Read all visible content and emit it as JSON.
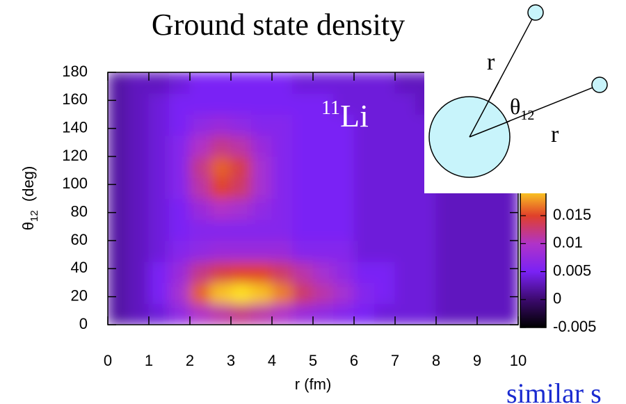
{
  "chart_data": {
    "type": "heatmap",
    "title": "Ground state density",
    "annotation": {
      "superscript": "11",
      "text": "Li"
    },
    "xlabel": "r  (fm)",
    "ylabel": {
      "symbol": "θ",
      "subscript": "12",
      "unit": "(deg)"
    },
    "xlim": [
      0,
      10
    ],
    "ylim": [
      0,
      180
    ],
    "xticks": [
      0,
      1,
      2,
      3,
      4,
      5,
      6,
      7,
      8,
      9,
      10
    ],
    "yticks": [
      0,
      20,
      40,
      60,
      80,
      100,
      120,
      140,
      160,
      180
    ],
    "xbins": [
      0,
      0.5,
      1,
      1.5,
      2,
      2.5,
      3,
      3.5,
      4,
      4.5,
      5,
      5.5,
      6,
      6.5,
      7,
      7.5,
      8,
      8.5,
      9,
      9.5,
      10
    ],
    "ybins": [
      0,
      15,
      30,
      45,
      60,
      75,
      90,
      105,
      120,
      135,
      150,
      165,
      180
    ],
    "z": [
      [
        0.002,
        0.003,
        0.004,
        0.007,
        0.01,
        0.011,
        0.012,
        0.011,
        0.01,
        0.008,
        0.007,
        0.006,
        0.005,
        0.004,
        0.004,
        0.004,
        0.003,
        0.003,
        0.003,
        0.003
      ],
      [
        0.002,
        0.003,
        0.005,
        0.009,
        0.016,
        0.019,
        0.02,
        0.019,
        0.017,
        0.013,
        0.011,
        0.009,
        0.006,
        0.005,
        0.004,
        0.004,
        0.003,
        0.003,
        0.003,
        0.003
      ],
      [
        0.002,
        0.003,
        0.005,
        0.008,
        0.012,
        0.014,
        0.015,
        0.015,
        0.013,
        0.011,
        0.009,
        0.007,
        0.005,
        0.005,
        0.004,
        0.004,
        0.003,
        0.003,
        0.003,
        0.003
      ],
      [
        0.002,
        0.003,
        0.004,
        0.006,
        0.007,
        0.008,
        0.008,
        0.008,
        0.008,
        0.006,
        0.006,
        0.006,
        0.004,
        0.004,
        0.004,
        0.004,
        0.003,
        0.003,
        0.003,
        0.003
      ],
      [
        0.002,
        0.003,
        0.004,
        0.005,
        0.006,
        0.006,
        0.006,
        0.006,
        0.006,
        0.005,
        0.005,
        0.005,
        0.004,
        0.004,
        0.004,
        0.004,
        0.003,
        0.003,
        0.003,
        0.003
      ],
      [
        0.002,
        0.003,
        0.004,
        0.005,
        0.008,
        0.01,
        0.009,
        0.007,
        0.006,
        0.005,
        0.005,
        0.005,
        0.004,
        0.004,
        0.004,
        0.004,
        0.003,
        0.003,
        0.003,
        0.003
      ],
      [
        0.002,
        0.003,
        0.004,
        0.006,
        0.011,
        0.015,
        0.013,
        0.009,
        0.006,
        0.005,
        0.005,
        0.005,
        0.004,
        0.004,
        0.004,
        0.004,
        0.003,
        0.003,
        0.003,
        0.003
      ],
      [
        0.002,
        0.003,
        0.004,
        0.006,
        0.012,
        0.016,
        0.014,
        0.009,
        0.006,
        0.005,
        0.005,
        0.005,
        0.004,
        0.004,
        0.004,
        0.004,
        0.003,
        0.003,
        0.003,
        0.003
      ],
      [
        0.002,
        0.003,
        0.004,
        0.006,
        0.01,
        0.012,
        0.011,
        0.008,
        0.006,
        0.005,
        0.005,
        0.005,
        0.004,
        0.004,
        0.004,
        0.004,
        0.003,
        0.003,
        0.003,
        0.003
      ],
      [
        0.002,
        0.003,
        0.004,
        0.005,
        0.007,
        0.008,
        0.007,
        0.006,
        0.006,
        0.005,
        0.005,
        0.005,
        0.004,
        0.004,
        0.004,
        0.004,
        0.003,
        0.003,
        0.003,
        0.003
      ],
      [
        0.002,
        0.003,
        0.004,
        0.005,
        0.005,
        0.005,
        0.005,
        0.005,
        0.005,
        0.005,
        0.005,
        0.004,
        0.004,
        0.004,
        0.004,
        0.003,
        0.003,
        0.003,
        0.003,
        0.003
      ],
      [
        0.002,
        0.003,
        0.003,
        0.004,
        0.005,
        0.005,
        0.005,
        0.005,
        0.005,
        0.004,
        0.004,
        0.004,
        0.004,
        0.004,
        0.003,
        0.003,
        0.003,
        0.003,
        0.003,
        0.003
      ]
    ],
    "clim": [
      -0.005,
      0.02
    ],
    "cbticks": [
      -0.005,
      0,
      0.005,
      0.01,
      0.015
    ],
    "colorscale": [
      [
        -0.005,
        "#000000"
      ],
      [
        0,
        "#3c0a6e"
      ],
      [
        0.005,
        "#7a22f5"
      ],
      [
        0.01,
        "#b033c8"
      ],
      [
        0.015,
        "#e0402a"
      ],
      [
        0.02,
        "#ffe020"
      ]
    ]
  },
  "inset": {
    "r_upper": "r",
    "angle": {
      "symbol": "θ",
      "subscript": "12"
    },
    "r_lower": "r"
  },
  "footer": "similar s"
}
